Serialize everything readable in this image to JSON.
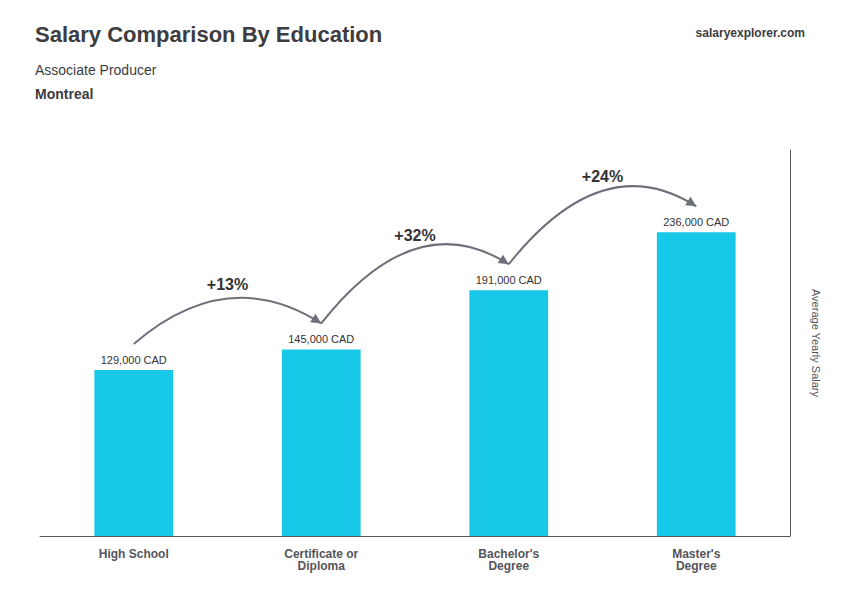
{
  "chart_data": {
    "type": "bar",
    "title": "Salary Comparison By Education",
    "subtitle": [
      "Associate Producer",
      "Montreal"
    ],
    "site": "salaryexplorer.com",
    "y_label": "Average Yearly Salary",
    "categories": [
      "High School",
      "Certificate or\nDiploma",
      "Bachelor's\nDegree",
      "Master's\nDegree"
    ],
    "values": [
      129000,
      145000,
      191000,
      236000
    ],
    "value_labels": [
      "129,000 CAD",
      "145,000 CAD",
      "191,000 CAD",
      "236,000 CAD"
    ],
    "annotations": [
      "+13%",
      "+32%",
      "+24%"
    ],
    "color": "#18c8e8",
    "ylim": [
      0,
      300000
    ],
    "tick_labels": "x",
    "grid": false,
    "data_labels": true
  }
}
